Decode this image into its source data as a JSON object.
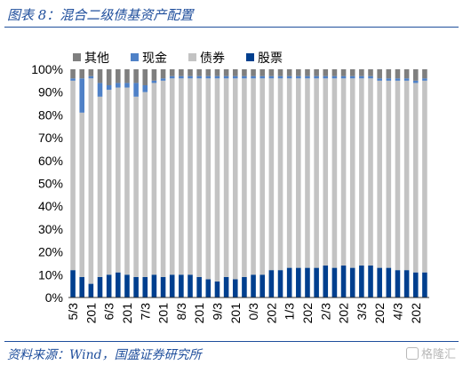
{
  "header": {
    "title": "图表 8：混合二级债基资产配置"
  },
  "footer": {
    "source": "资料来源：Wind，国盛证券研究所",
    "watermark": "格隆汇"
  },
  "colors": {
    "stocks": "#003f8e",
    "bonds": "#c3c3c3",
    "cash": "#4f81c7",
    "other": "#7f7f7f",
    "accent": "#1f4e9c"
  },
  "chart_data": {
    "type": "bar",
    "stacked": true,
    "legend": [
      "其他",
      "现金",
      "债券",
      "股票"
    ],
    "legend_position": "top",
    "yticks": [
      "0%",
      "10%",
      "20%",
      "30%",
      "40%",
      "50%",
      "60%",
      "70%",
      "80%",
      "90%",
      "100%"
    ],
    "ylim": [
      0,
      100
    ],
    "xticks": [
      "5/3",
      "201",
      "6/3",
      "201",
      "7/3",
      "201",
      "8/3",
      "201",
      "9/3",
      "201",
      "0/3",
      "202",
      "1/3",
      "202",
      "2/3",
      "202",
      "3/3",
      "202",
      "4/3",
      "202"
    ],
    "series": [
      {
        "name": "股票",
        "values": [
          12,
          9,
          6,
          9,
          10,
          11,
          10,
          9,
          9,
          10,
          9,
          10,
          10,
          10,
          9,
          8,
          7,
          9,
          8,
          9,
          10,
          10,
          12,
          12,
          13,
          13,
          13,
          13,
          14,
          13,
          14,
          13,
          14,
          14,
          13,
          13,
          12,
          12,
          11,
          11
        ]
      },
      {
        "name": "债券",
        "values": [
          83,
          72,
          90,
          79,
          81,
          81,
          82,
          79,
          81,
          84,
          86,
          86,
          86,
          86,
          87,
          88,
          89,
          87,
          88,
          87,
          86,
          86,
          84,
          84,
          83,
          83,
          83,
          83,
          82,
          83,
          82,
          83,
          82,
          82,
          82,
          82,
          83,
          83,
          83,
          84
        ]
      },
      {
        "name": "现金",
        "values": [
          1,
          15,
          1,
          6,
          2,
          2,
          2,
          6,
          3,
          1,
          1,
          1,
          1,
          1,
          1,
          1,
          1,
          1,
          1,
          1,
          1,
          1,
          1,
          1,
          1,
          1,
          1,
          1,
          1,
          1,
          1,
          1,
          1,
          1,
          1,
          1,
          1,
          1,
          1,
          1
        ]
      },
      {
        "name": "其他",
        "values": [
          4,
          4,
          3,
          6,
          7,
          6,
          6,
          6,
          7,
          5,
          4,
          3,
          3,
          3,
          3,
          3,
          3,
          3,
          3,
          3,
          3,
          3,
          3,
          3,
          3,
          3,
          3,
          3,
          3,
          3,
          3,
          3,
          3,
          3,
          4,
          4,
          4,
          4,
          5,
          4
        ]
      }
    ]
  }
}
